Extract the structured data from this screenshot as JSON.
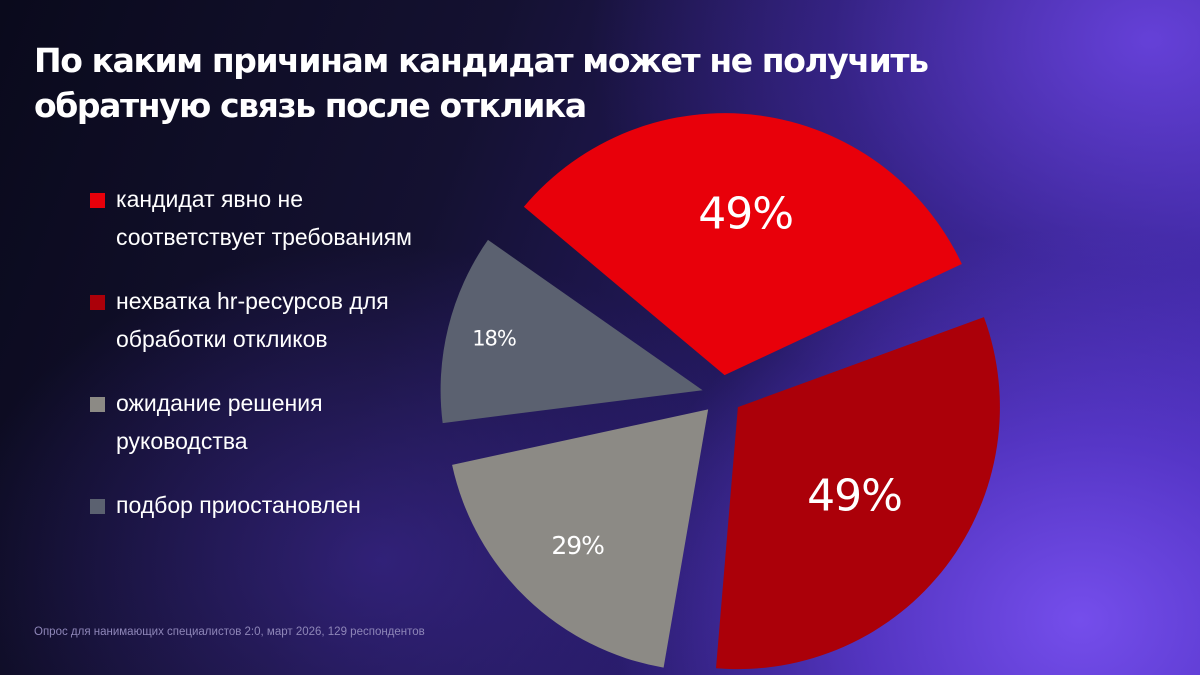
{
  "title": "По каким причинам кандидат может не получить обратную связь после отклика",
  "footnote": "Опрос для нанимающих специалистов 2:0, март 2026, 129 респондентов",
  "chart_data": {
    "type": "pie",
    "exploded": true,
    "legend_position": "left",
    "series": [
      {
        "name": "кандидат явно не соответствует требованиям",
        "value": 49,
        "label": "49%",
        "color": "#e8000a"
      },
      {
        "name": "нехватка hr-ресурсов для обработки откликов",
        "value": 49,
        "label": "49%",
        "color": "#ab0009"
      },
      {
        "name": "ожидание решения руководства",
        "value": 29,
        "label": "29%",
        "color": "#8c8a85"
      },
      {
        "name": "подбор приостановлен",
        "value": 18,
        "label": "18%",
        "color": "#5b6170"
      }
    ]
  }
}
